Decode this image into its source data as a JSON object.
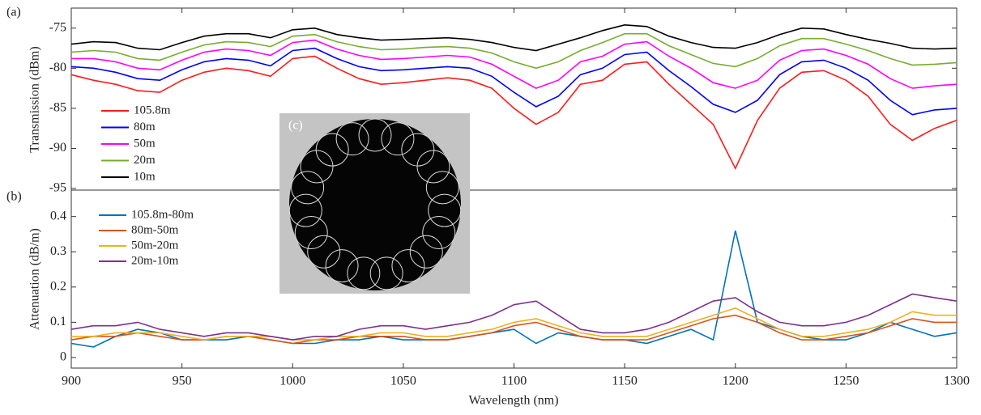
{
  "chart_data": [
    {
      "type": "line",
      "panel_label": "(a)",
      "ylabel": "Transmission (dBm)",
      "x": [
        900,
        910,
        920,
        930,
        940,
        950,
        960,
        970,
        980,
        990,
        1000,
        1010,
        1020,
        1030,
        1040,
        1050,
        1060,
        1070,
        1080,
        1090,
        1100,
        1110,
        1120,
        1130,
        1140,
        1150,
        1160,
        1170,
        1180,
        1190,
        1200,
        1210,
        1220,
        1230,
        1240,
        1250,
        1260,
        1270,
        1280,
        1290,
        1300
      ],
      "xlim": [
        900,
        1300
      ],
      "ylim": [
        -95.2,
        -72.5
      ],
      "yticks": [
        -95,
        -90,
        -85,
        -80,
        -75
      ],
      "legend": "upper left",
      "series": [
        {
          "name": "105.8m",
          "color": "#ff1a1a",
          "values": [
            -80.8,
            -81.5,
            -82,
            -82.8,
            -83,
            -81.5,
            -80.5,
            -80,
            -80.3,
            -81,
            -78.8,
            -78.5,
            -80,
            -81.3,
            -82,
            -81.8,
            -81.5,
            -81.2,
            -81.5,
            -82.5,
            -85,
            -87,
            -85.5,
            -82,
            -81.5,
            -79.5,
            -79.2,
            -82,
            -84.5,
            -87,
            -92.5,
            -86.5,
            -82.5,
            -80.5,
            -80.3,
            -81.5,
            -83.5,
            -87,
            -89,
            -87.5,
            -86.5
          ]
        },
        {
          "name": "80m",
          "color": "#0000ff",
          "values": [
            -79.8,
            -80,
            -80.5,
            -81.3,
            -81.5,
            -80.2,
            -79.2,
            -78.8,
            -79,
            -79.7,
            -77.8,
            -77.5,
            -78.8,
            -79.8,
            -80.3,
            -80.2,
            -80,
            -79.8,
            -80,
            -81,
            -83,
            -84.8,
            -83.5,
            -80.8,
            -80,
            -78.3,
            -78,
            -80.3,
            -82.3,
            -84.5,
            -85.5,
            -84,
            -80.8,
            -79.2,
            -79,
            -80,
            -81.5,
            -84,
            -85.8,
            -85.2,
            -85
          ]
        },
        {
          "name": "50m",
          "color": "#ff00ff",
          "values": [
            -78.8,
            -78.8,
            -79.2,
            -80,
            -80.2,
            -79,
            -78,
            -77.6,
            -77.8,
            -78.4,
            -76.8,
            -76.5,
            -77.6,
            -78.4,
            -78.9,
            -78.8,
            -78.6,
            -78.4,
            -78.6,
            -79.5,
            -81,
            -82.5,
            -81.5,
            -79.2,
            -78.5,
            -77,
            -76.7,
            -78.5,
            -80,
            -81.8,
            -82.5,
            -81.5,
            -79,
            -77.8,
            -77.6,
            -78.4,
            -79.5,
            -81.3,
            -82.5,
            -82.2,
            -82
          ]
        },
        {
          "name": "20m",
          "color": "#77ac30",
          "values": [
            -78,
            -77.8,
            -78,
            -78.8,
            -79,
            -78,
            -77.1,
            -76.7,
            -76.8,
            -77.3,
            -76,
            -75.8,
            -76.7,
            -77.3,
            -77.7,
            -77.6,
            -77.4,
            -77.3,
            -77.5,
            -78.1,
            -79.2,
            -80,
            -79.2,
            -77.8,
            -76.8,
            -75.7,
            -75.7,
            -77.2,
            -78.3,
            -79.4,
            -79.8,
            -78.8,
            -77.2,
            -76.3,
            -76.3,
            -77,
            -77.8,
            -78.8,
            -79.6,
            -79.5,
            -79.3
          ]
        },
        {
          "name": "10m",
          "color": "#000000",
          "values": [
            -77,
            -76.7,
            -76.8,
            -77.5,
            -77.7,
            -76.8,
            -76,
            -75.7,
            -75.7,
            -76.2,
            -75.2,
            -75,
            -75.8,
            -76.2,
            -76.5,
            -76.4,
            -76.3,
            -76.2,
            -76.4,
            -76.8,
            -77.4,
            -77.8,
            -77,
            -76.2,
            -75.3,
            -74.6,
            -74.8,
            -76,
            -76.8,
            -77.4,
            -77.5,
            -76.8,
            -75.8,
            -75,
            -75.1,
            -75.8,
            -76.4,
            -76.9,
            -77.5,
            -77.6,
            -77.5
          ]
        }
      ]
    },
    {
      "type": "line",
      "panel_label": "(b)",
      "ylabel": "Attenuation (dB/m)",
      "xlabel": "Wavelength (nm)",
      "x": [
        900,
        910,
        920,
        930,
        940,
        950,
        960,
        970,
        980,
        990,
        1000,
        1010,
        1020,
        1030,
        1040,
        1050,
        1060,
        1070,
        1080,
        1090,
        1100,
        1110,
        1120,
        1130,
        1140,
        1150,
        1160,
        1170,
        1180,
        1190,
        1200,
        1210,
        1220,
        1230,
        1240,
        1250,
        1260,
        1270,
        1280,
        1290,
        1300
      ],
      "xlim": [
        900,
        1300
      ],
      "xticks": [
        900,
        950,
        1000,
        1050,
        1100,
        1150,
        1200,
        1250,
        1300
      ],
      "ylim": [
        -0.03,
        0.475
      ],
      "yticks": [
        0,
        0.1,
        0.2,
        0.3,
        0.4
      ],
      "legend": "upper left",
      "series": [
        {
          "name": "105.8m-80m",
          "color": "#0072bd",
          "values": [
            0.04,
            0.03,
            0.06,
            0.08,
            0.07,
            0.05,
            0.05,
            0.05,
            0.06,
            0.05,
            0.04,
            0.04,
            0.05,
            0.05,
            0.06,
            0.05,
            0.05,
            0.05,
            0.06,
            0.07,
            0.08,
            0.04,
            0.07,
            0.06,
            0.05,
            0.05,
            0.04,
            0.06,
            0.08,
            0.05,
            0.36,
            0.1,
            0.08,
            0.06,
            0.05,
            0.05,
            0.07,
            0.1,
            0.08,
            0.06,
            0.07
          ]
        },
        {
          "name": "80m-50m",
          "color": "#d95319",
          "values": [
            0.05,
            0.06,
            0.06,
            0.07,
            0.06,
            0.05,
            0.05,
            0.06,
            0.06,
            0.05,
            0.04,
            0.05,
            0.05,
            0.06,
            0.06,
            0.06,
            0.05,
            0.05,
            0.06,
            0.07,
            0.09,
            0.1,
            0.08,
            0.06,
            0.05,
            0.05,
            0.05,
            0.07,
            0.09,
            0.11,
            0.12,
            0.1,
            0.07,
            0.05,
            0.05,
            0.06,
            0.07,
            0.09,
            0.11,
            0.1,
            0.1
          ]
        },
        {
          "name": "50m-20m",
          "color": "#edb120",
          "values": [
            0.06,
            0.06,
            0.07,
            0.07,
            0.07,
            0.06,
            0.05,
            0.06,
            0.06,
            0.06,
            0.05,
            0.05,
            0.06,
            0.06,
            0.07,
            0.07,
            0.06,
            0.06,
            0.07,
            0.08,
            0.1,
            0.11,
            0.09,
            0.07,
            0.06,
            0.06,
            0.06,
            0.08,
            0.1,
            0.12,
            0.14,
            0.11,
            0.08,
            0.06,
            0.06,
            0.07,
            0.08,
            0.1,
            0.13,
            0.12,
            0.12
          ]
        },
        {
          "name": "20m-10m",
          "color": "#7e2f8e",
          "values": [
            0.08,
            0.09,
            0.09,
            0.1,
            0.08,
            0.07,
            0.06,
            0.07,
            0.07,
            0.06,
            0.05,
            0.06,
            0.06,
            0.08,
            0.09,
            0.09,
            0.08,
            0.09,
            0.1,
            0.12,
            0.15,
            0.16,
            0.12,
            0.08,
            0.07,
            0.07,
            0.08,
            0.1,
            0.13,
            0.16,
            0.17,
            0.13,
            0.1,
            0.09,
            0.09,
            0.1,
            0.12,
            0.15,
            0.18,
            0.17,
            0.16
          ]
        }
      ]
    },
    {
      "type": "inset",
      "panel_label": "(c)"
    }
  ]
}
